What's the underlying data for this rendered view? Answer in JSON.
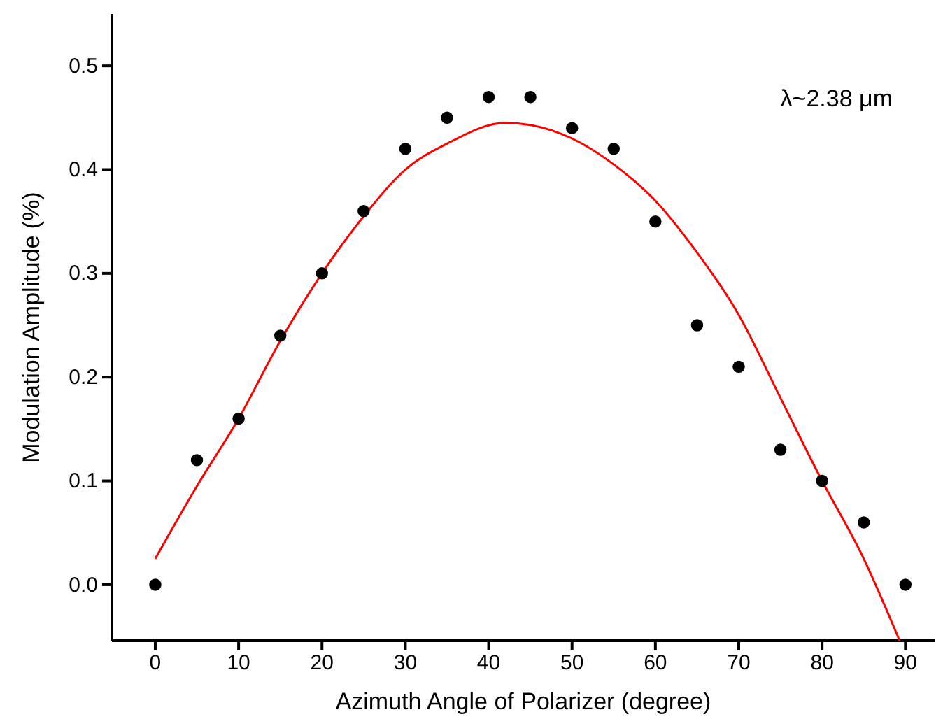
{
  "chart_data": {
    "type": "scatter",
    "xlabel": "Azimuth Angle of Polarizer (degree)",
    "ylabel": "Modulation Amplitude (%)",
    "annotations": [
      "λ~2.38 μm"
    ],
    "xlim": [
      -5.2,
      93.5
    ],
    "ylim": [
      -0.054,
      0.55
    ],
    "xticks": [
      0,
      10,
      20,
      30,
      40,
      50,
      60,
      70,
      80,
      90
    ],
    "yticks": [
      {
        "value": 0,
        "label": "0.0"
      },
      0.1,
      0.2,
      0.3,
      0.4,
      0.5
    ],
    "grid": false,
    "marker": "circle",
    "series": [
      {
        "type": "scatter",
        "color": "#000000",
        "x": [
          0,
          5,
          10,
          15,
          20,
          25,
          30,
          35,
          40,
          45,
          50,
          55,
          60,
          65,
          70,
          75,
          80,
          85,
          90
        ],
        "values": [
          0,
          0.12,
          0.16,
          0.24,
          0.3,
          0.36,
          0.42,
          0.45,
          0.47,
          0.47,
          0.44,
          0.42,
          0.35,
          0.25,
          0.21,
          0.13,
          0.1,
          0.06,
          0
        ]
      },
      {
        "type": "line",
        "color": "#ff0000",
        "marker": "none",
        "line_style": "solid",
        "x": [
          0,
          5,
          10,
          15,
          20,
          25,
          30,
          35,
          42,
          45,
          50,
          55,
          60,
          65,
          70,
          75,
          80,
          85,
          89.3
        ],
        "values": [
          0.025,
          0.095,
          0.16,
          0.235,
          0.3,
          0.355,
          0.4,
          0.425,
          0.445,
          0.443,
          0.43,
          0.405,
          0.37,
          0.32,
          0.26,
          0.18,
          0.1,
          0.025,
          -0.054
        ]
      }
    ]
  }
}
